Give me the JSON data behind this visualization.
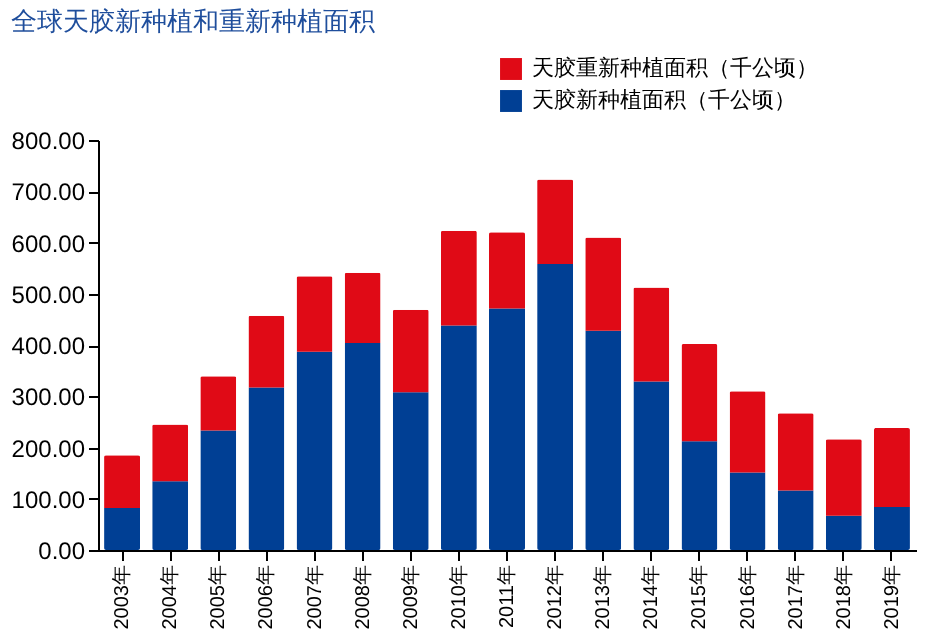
{
  "chart_data": {
    "type": "bar",
    "title": "全球天胶新种植和重新种植面积",
    "stacked": true,
    "categories": [
      "2003年",
      "2004年",
      "2005年",
      "2006年",
      "2007年",
      "2008年",
      "2009年",
      "2010年",
      "2011年",
      "2012年",
      "2013年",
      "2014年",
      "2015年",
      "2016年",
      "2017年",
      "2018年",
      "2019年"
    ],
    "series": [
      {
        "name": "天胶新种植面积（千公顷）",
        "color": "#003f94",
        "values": [
          82,
          134,
          233,
          317,
          387,
          404,
          308,
          438,
          471,
          558,
          428,
          329,
          212,
          151,
          116,
          67,
          84
        ]
      },
      {
        "name": "天胶重新种植面积（千公顷）",
        "color": "#e00a16",
        "values": [
          103,
          111,
          106,
          140,
          147,
          137,
          161,
          185,
          149,
          165,
          182,
          183,
          190,
          159,
          151,
          149,
          154
        ]
      }
    ],
    "ylim": [
      0,
      800
    ],
    "yticks": [
      {
        "value": 0,
        "label": "0.00"
      },
      {
        "value": 100,
        "label": "100.00"
      },
      {
        "value": 200,
        "label": "200.00"
      },
      {
        "value": 300,
        "label": "300.00"
      },
      {
        "value": 400,
        "label": "400.00"
      },
      {
        "value": 500,
        "label": "500.00"
      },
      {
        "value": 600,
        "label": "600.00"
      },
      {
        "value": 700,
        "label": "700.00"
      },
      {
        "value": 800,
        "label": "800.00"
      }
    ],
    "grid": false,
    "legend": "top right"
  }
}
